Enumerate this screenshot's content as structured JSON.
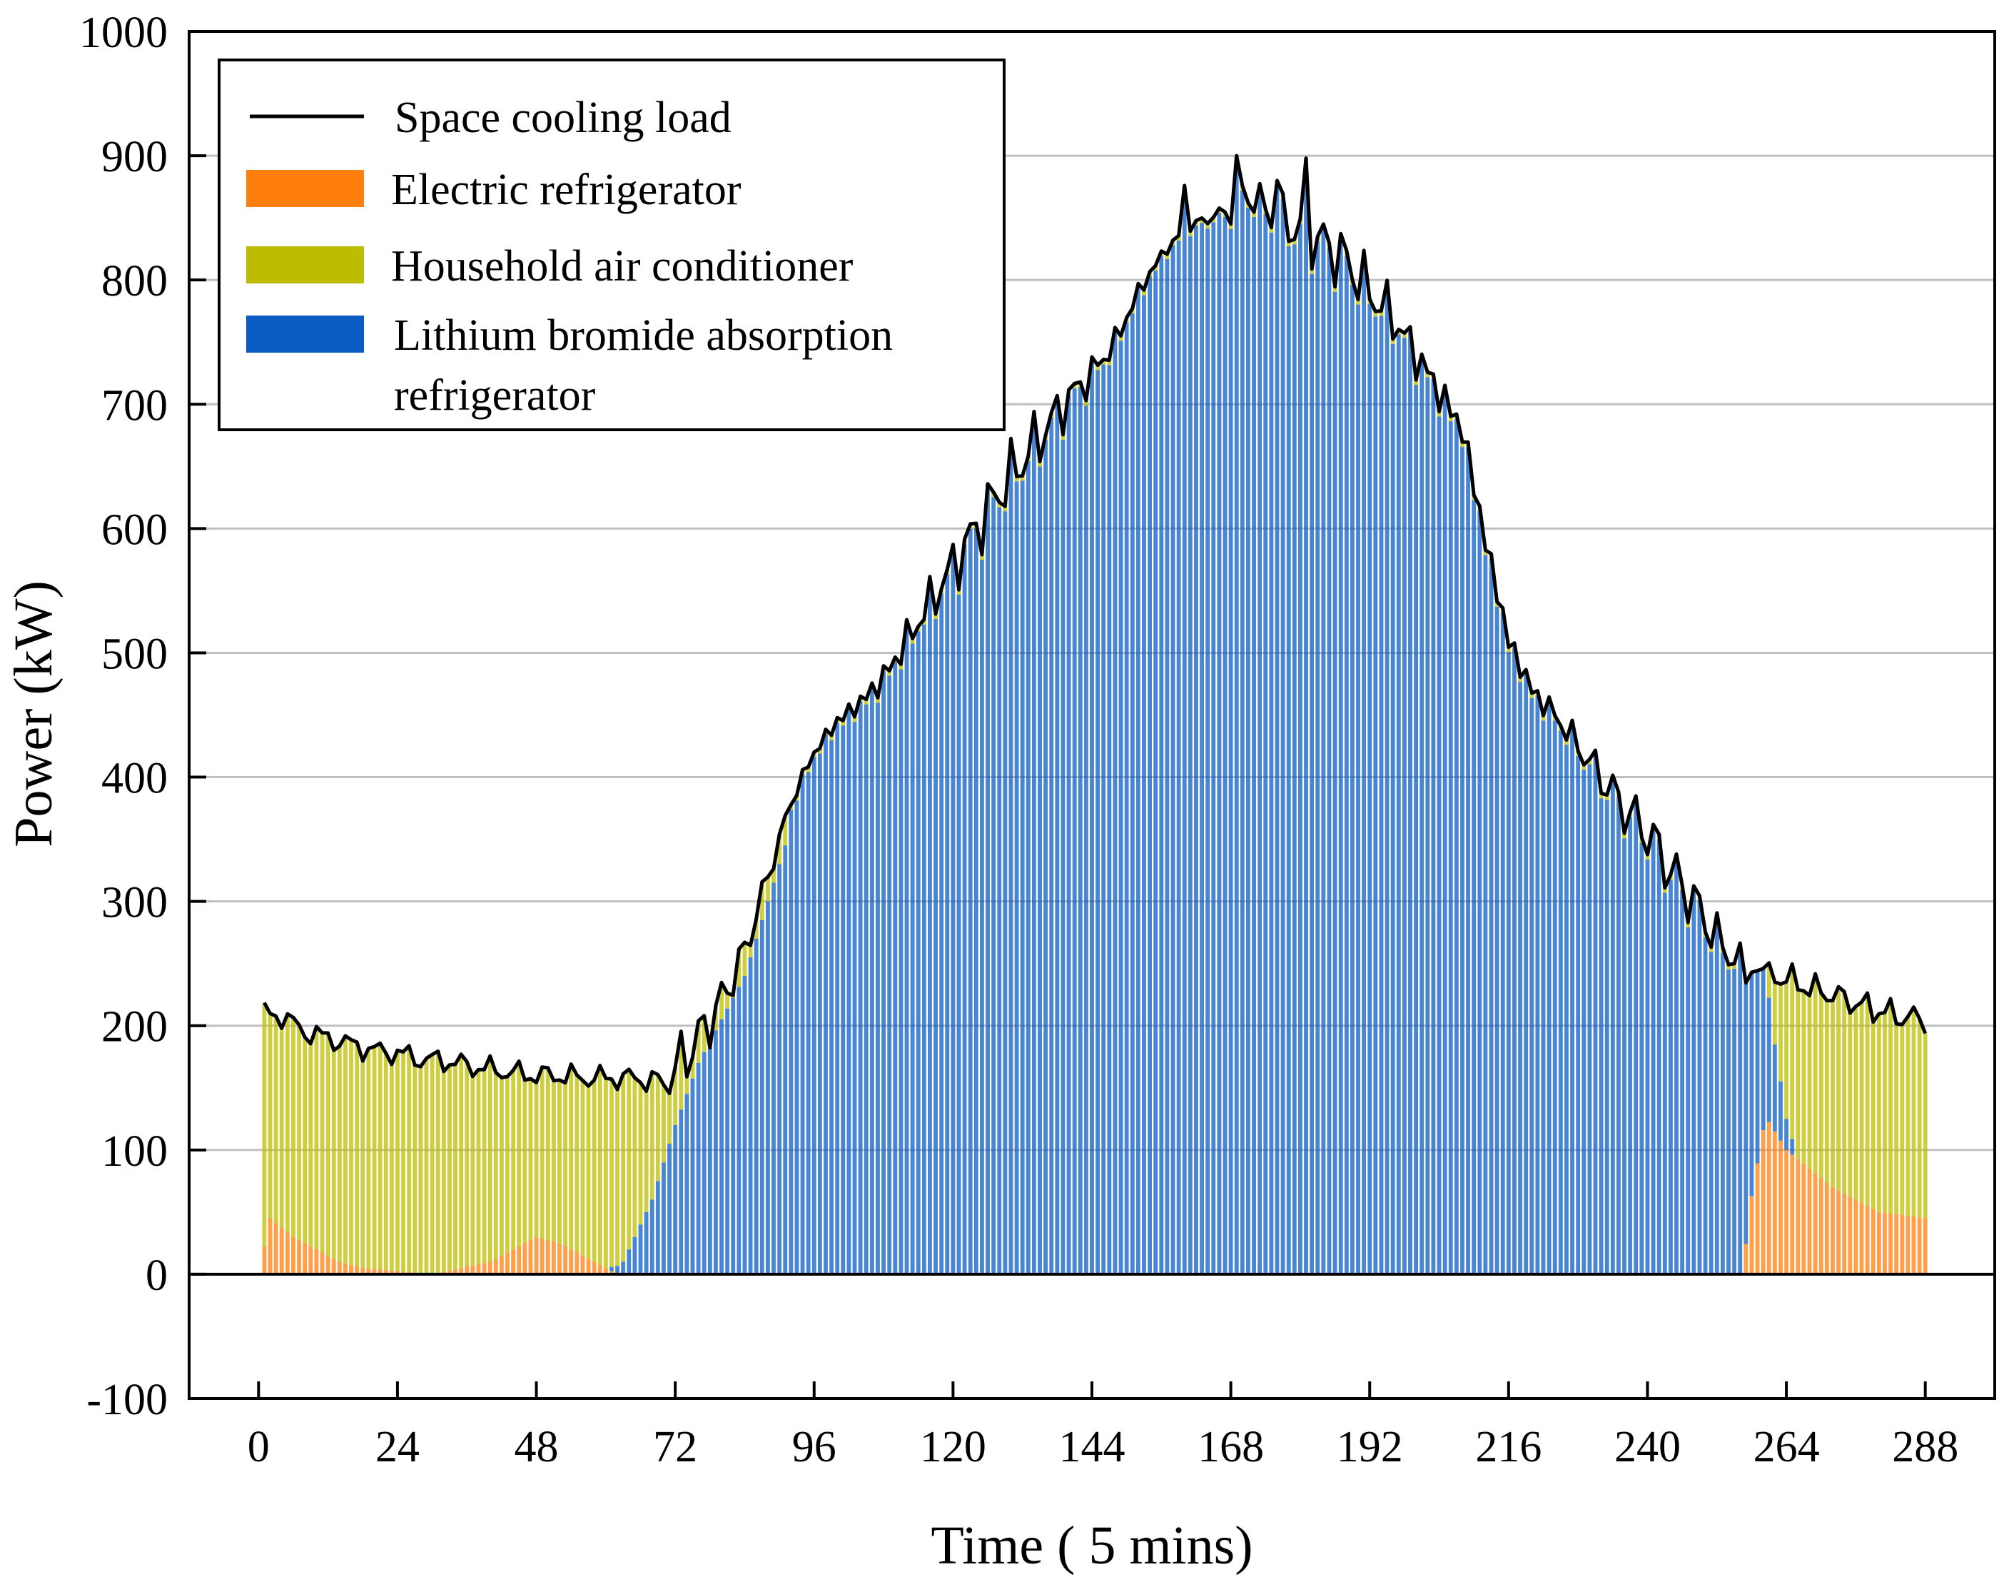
{
  "chart_data": {
    "type": "bar",
    "stacked": true,
    "xlabel": "Time ( 5 mins)",
    "ylabel": "Power (kW)",
    "xlim": [
      -12,
      300
    ],
    "ylim": [
      -100,
      1000
    ],
    "xticks": [
      0,
      24,
      48,
      72,
      96,
      120,
      144,
      168,
      192,
      216,
      240,
      264,
      288
    ],
    "yticks": [
      -100,
      0,
      100,
      200,
      300,
      400,
      500,
      600,
      700,
      800,
      900,
      1000
    ],
    "grid": "horizontal",
    "legend_position": "top-left",
    "colors": {
      "load_line": "#000000",
      "electric": "#ff7f0e",
      "household": "#bcbd00",
      "lithium": "#0b5cc4",
      "grid": "#c0c0c0"
    },
    "series": [
      {
        "name": "Space cooling load",
        "kind": "line"
      },
      {
        "name": "Electric refrigerator",
        "kind": "bar"
      },
      {
        "name": "Household air conditioner",
        "kind": "bar"
      },
      {
        "name": "Lithium bromide absorption refrigerator",
        "kind": "bar"
      }
    ],
    "load_control_points": {
      "x": [
        1,
        4,
        8,
        12,
        16,
        20,
        24,
        28,
        32,
        36,
        40,
        44,
        48,
        52,
        56,
        60,
        64,
        68,
        70,
        72,
        76,
        80,
        84,
        88,
        90,
        92,
        96,
        100,
        104,
        108,
        112,
        116,
        120,
        124,
        128,
        132,
        136,
        140,
        144,
        148,
        152,
        156,
        160,
        164,
        168,
        170,
        172,
        176,
        180,
        184,
        188,
        192,
        196,
        200,
        204,
        208,
        212,
        216,
        220,
        224,
        228,
        232,
        236,
        240,
        244,
        248,
        252,
        256,
        260,
        264,
        268,
        272,
        276,
        280,
        284,
        288
      ],
      "y": [
        210,
        208,
        195,
        190,
        185,
        180,
        178,
        173,
        172,
        168,
        165,
        162,
        160,
        160,
        158,
        158,
        158,
        156,
        158,
        165,
        190,
        220,
        260,
        320,
        350,
        380,
        420,
        445,
        460,
        480,
        510,
        540,
        570,
        600,
        630,
        655,
        680,
        705,
        725,
        750,
        790,
        820,
        840,
        850,
        855,
        870,
        865,
        850,
        840,
        830,
        815,
        790,
        770,
        740,
        710,
        680,
        590,
        510,
        470,
        450,
        425,
        400,
        375,
        355,
        325,
        300,
        270,
        248,
        242,
        238,
        230,
        225,
        218,
        212,
        207,
        205
      ]
    },
    "lithium_control_points": {
      "x": [
        0,
        60,
        63,
        68,
        72,
        76,
        80,
        84,
        88,
        92,
        256,
        258,
        260,
        262,
        264,
        266,
        288
      ],
      "y": [
        0,
        0,
        10,
        60,
        120,
        170,
        205,
        240,
        300,
        360,
        240,
        180,
        130,
        70,
        25,
        0,
        0
      ]
    },
    "electric_control_points": {
      "x": [
        0,
        2,
        6,
        10,
        14,
        18,
        30,
        40,
        44,
        48,
        52,
        56,
        60,
        62,
        64,
        256,
        258,
        260,
        264,
        268,
        272,
        276,
        280,
        284,
        288
      ],
      "y": [
        0,
        45,
        30,
        20,
        10,
        5,
        0,
        10,
        20,
        30,
        25,
        15,
        5,
        0,
        0,
        0,
        160,
        130,
        100,
        85,
        70,
        60,
        50,
        48,
        45
      ]
    },
    "notable_peaks": [
      {
        "x": 169,
        "y": 900
      },
      {
        "x": 181,
        "y": 898
      },
      {
        "x": 160,
        "y": 876
      },
      {
        "x": 176,
        "y": 880
      }
    ]
  }
}
